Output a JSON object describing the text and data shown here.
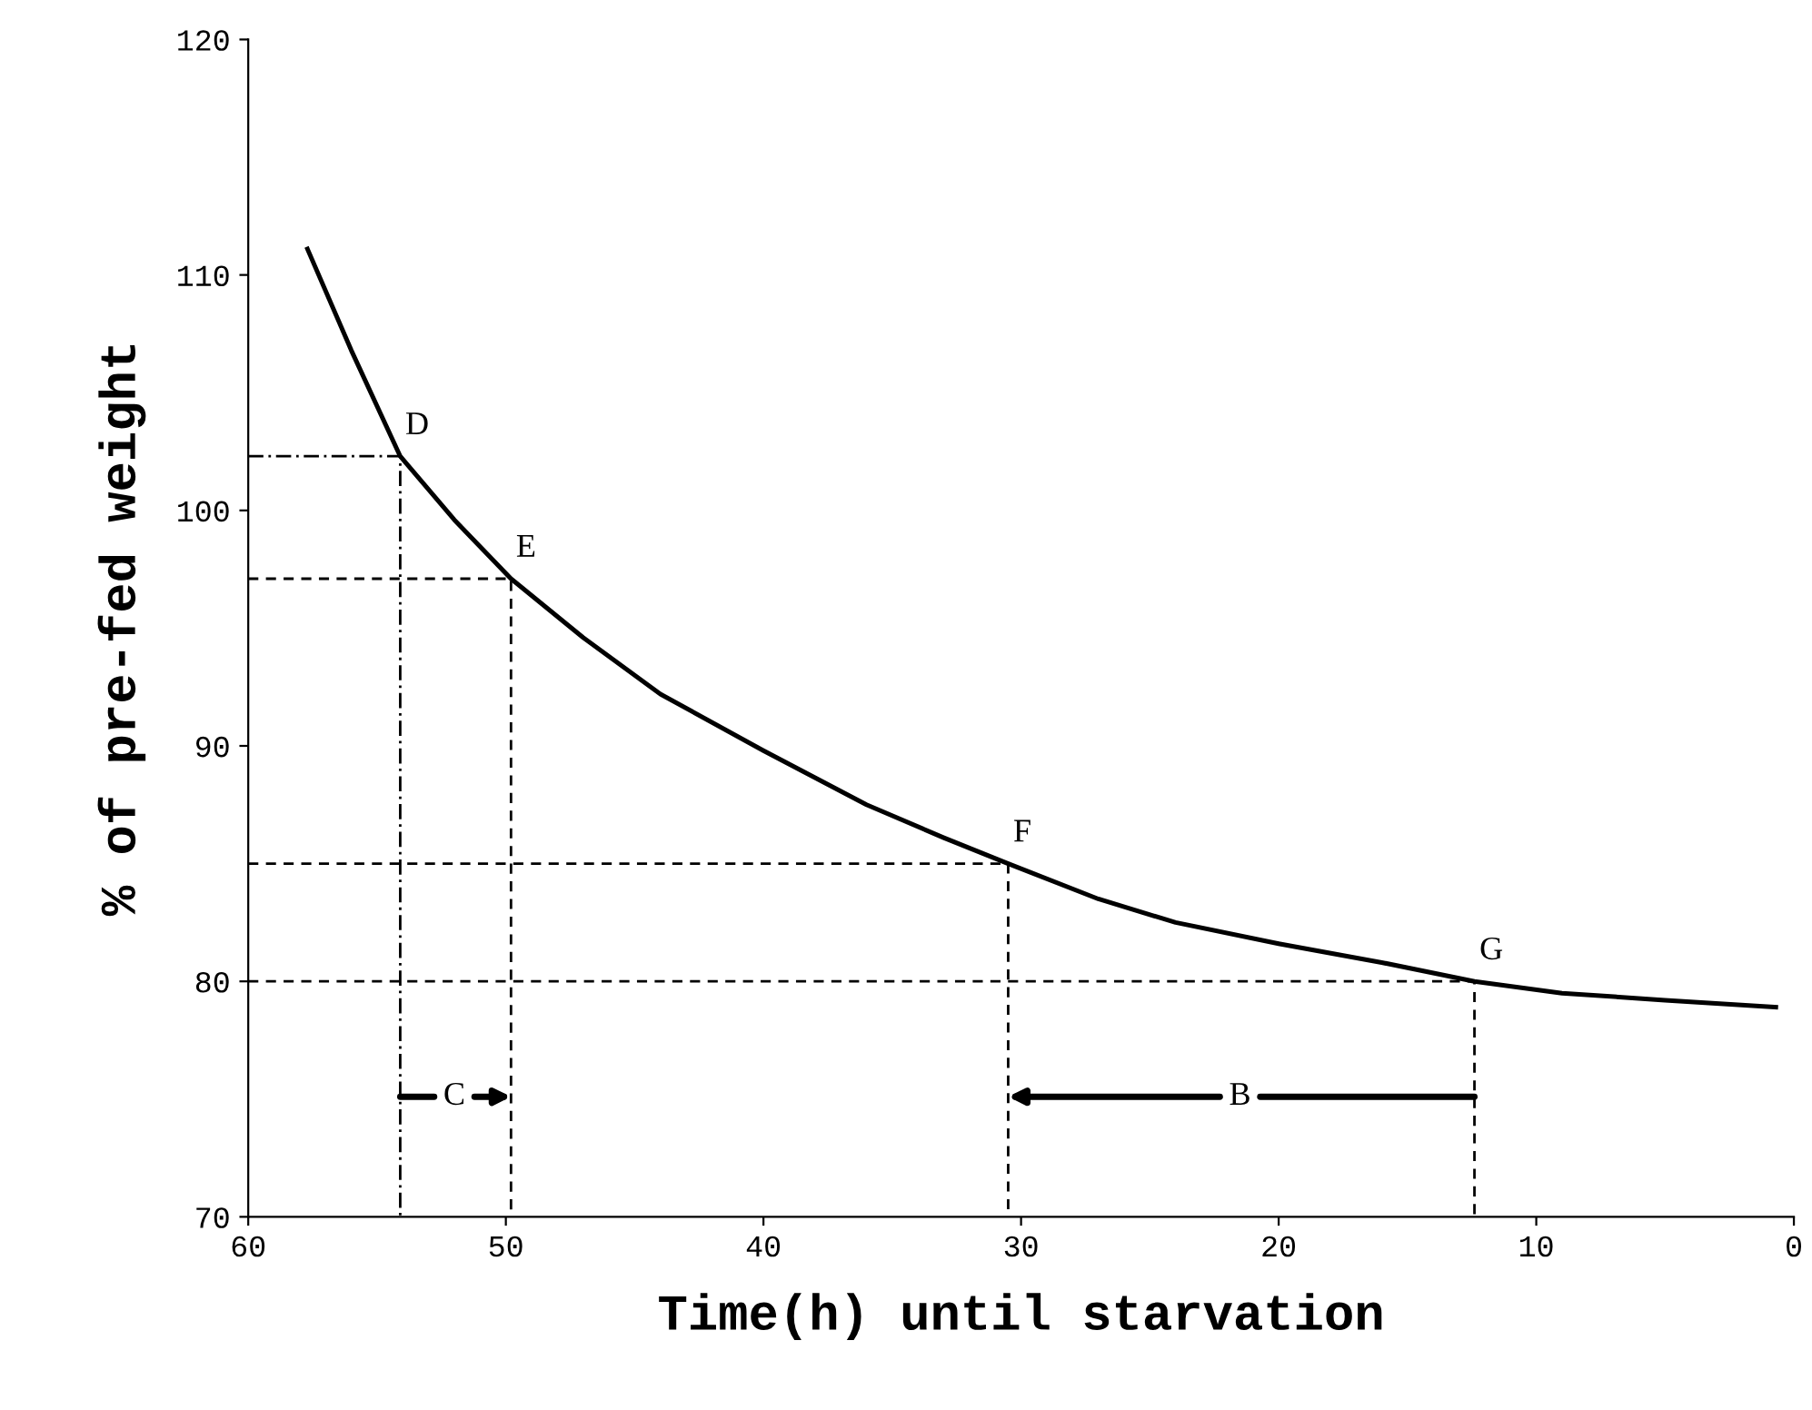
{
  "chart_data": {
    "type": "line",
    "xlabel": "Time(h) until starvation",
    "ylabel": "% of pre-fed weight",
    "xlim": [
      60,
      0
    ],
    "xticks": [
      60,
      50,
      40,
      30,
      20,
      10,
      0
    ],
    "ylim": [
      70,
      120
    ],
    "yticks": [
      70,
      80,
      90,
      100,
      110,
      120
    ],
    "grid": false,
    "legend": false,
    "marker": "none",
    "line_style": "solid",
    "series": [
      {
        "color": "#000000",
        "x": [
          57.7,
          56,
          54.1,
          52,
          49.8,
          47,
          44,
          40,
          36,
          33,
          30.5,
          27,
          24,
          20,
          16,
          12.4,
          9,
          5,
          0.7
        ],
        "values": [
          111.1,
          106.8,
          102.3,
          99.6,
          97.1,
          94.6,
          92.2,
          89.8,
          87.5,
          86.1,
          85.0,
          83.5,
          82.5,
          81.6,
          80.8,
          80.0,
          79.5,
          79.2,
          78.9
        ]
      },
      {
        "color": "#000000",
        "line_style": "dashdot",
        "x": [
          60,
          54.1,
          54.1
        ],
        "values": [
          102.3,
          102.3,
          70
        ]
      },
      {
        "color": "#000000",
        "line_style": "dashed",
        "x": [
          60,
          49.8,
          49.8
        ],
        "values": [
          97.1,
          97.1,
          70
        ]
      },
      {
        "color": "#000000",
        "line_style": "dashed",
        "x": [
          60,
          30.5,
          30.5
        ],
        "values": [
          85.0,
          85.0,
          70
        ]
      },
      {
        "color": "#000000",
        "line_style": "dashed",
        "x": [
          60,
          12.4,
          12.4
        ],
        "values": [
          80.0,
          80.0,
          70
        ]
      }
    ],
    "annotations": [
      {
        "text": "D",
        "x": 54.1,
        "y": 102.3
      },
      {
        "text": "E",
        "x": 49.8,
        "y": 97.1
      },
      {
        "text": "F",
        "x": 30.5,
        "y": 85.0
      },
      {
        "text": "G",
        "x": 12.4,
        "y": 80.0
      },
      {
        "text": "C",
        "x": 52,
        "y": 75.1
      },
      {
        "text": "B",
        "x": 21.5,
        "y": 75.1
      }
    ]
  }
}
